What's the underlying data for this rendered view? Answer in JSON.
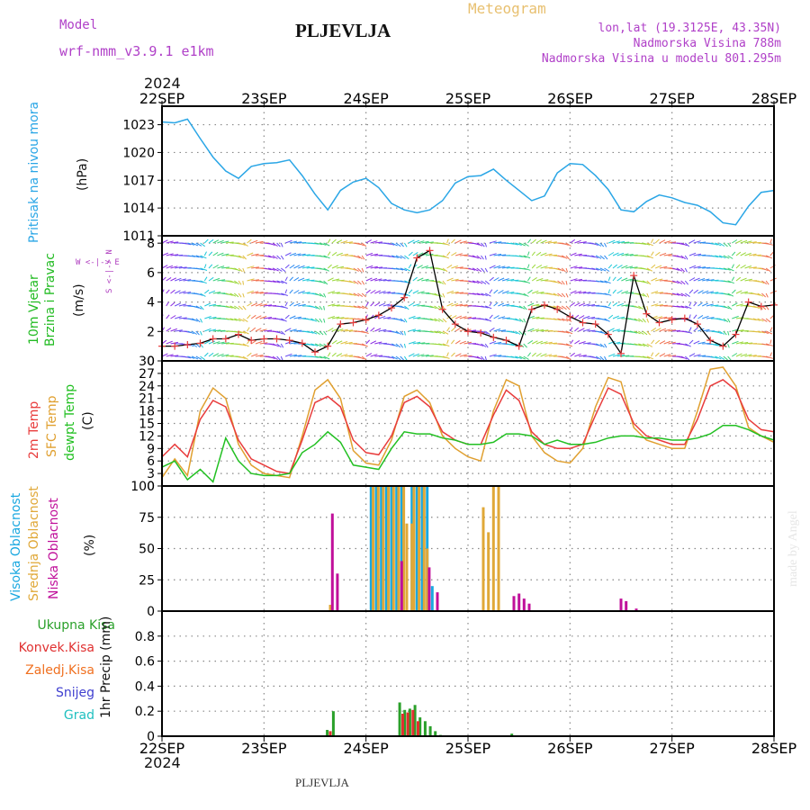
{
  "header": {
    "model_label": "Model",
    "model_name": "wrf-nmm_v3.9.1  e1km",
    "title": "PLJEVLJA",
    "subtitle": "Meteogram",
    "coords": "lon,lat (19.3125E, 43.35N)",
    "elevation": "Nadmorska Visina 788m",
    "model_elevation": "Nadmorska Visina u modelu 801.295m",
    "year": "2024",
    "footer_title": "PLJEVLJA",
    "credit": "made by Angel"
  },
  "colors": {
    "pressure": "#2aa6e6",
    "wind_label": "#22bb22",
    "temp2m": "#e83c3c",
    "sfc": "#e0a030",
    "dewpt": "#22c022",
    "high_cloud": "#1aa8e0",
    "mid_cloud": "#e0a838",
    "low_cloud": "#c0109a",
    "precip_total": "#2aa02a",
    "precip_conv": "#e03030",
    "precip_frz": "#f07020",
    "snow": "#4040d0",
    "graupel": "#20c0c0",
    "compass": "#b040c0",
    "header_purple": "#b040c8",
    "header_orange": "#e8c070"
  },
  "chart_data": [
    {
      "type": "line",
      "title": "Pritisak na nivou mora",
      "ylabel": "(hPa)",
      "x_ticks": [
        "22SEP",
        "23SEP",
        "24SEP",
        "25SEP",
        "26SEP",
        "27SEP",
        "28SEP"
      ],
      "ylim": [
        1011,
        1025
      ],
      "y_ticks": [
        1011,
        1014,
        1017,
        1020,
        1023
      ],
      "grid": true,
      "x": [
        0,
        0.125,
        0.25,
        0.375,
        0.5,
        0.625,
        0.75,
        0.875,
        1.0,
        1.125,
        1.25,
        1.375,
        1.5,
        1.625,
        1.75,
        1.875,
        2.0,
        2.125,
        2.25,
        2.375,
        2.5,
        2.625,
        2.75,
        2.875,
        3.0,
        3.125,
        3.25,
        3.375,
        3.5,
        3.625,
        3.75,
        3.875,
        4.0,
        4.125,
        4.25,
        4.375,
        4.5,
        4.625,
        4.75,
        4.875,
        5.0,
        5.125,
        5.25,
        5.375,
        5.5,
        5.625,
        5.75,
        5.875,
        6.0
      ],
      "series": [
        {
          "values": [
            1023.3,
            1023.2,
            1023.6,
            1021.5,
            1019.5,
            1018.0,
            1017.2,
            1018.5,
            1018.8,
            1018.9,
            1019.2,
            1017.5,
            1015.5,
            1013.8,
            1015.9,
            1016.8,
            1017.2,
            1016.2,
            1014.5,
            1013.8,
            1013.5,
            1013.8,
            1014.8,
            1016.7,
            1017.4,
            1017.5,
            1018.2,
            1017.0,
            1015.9,
            1014.8,
            1015.3,
            1017.8,
            1018.8,
            1018.7,
            1017.5,
            1016.0,
            1013.8,
            1013.6,
            1014.7,
            1015.4,
            1015.1,
            1014.6,
            1014.3,
            1013.6,
            1012.4,
            1012.2,
            1014.2,
            1015.7,
            1015.9
          ]
        }
      ]
    },
    {
      "type": "line",
      "title": "10m Vjetar Brzina i Pravac",
      "ylabel": "(m/s)",
      "compass": "W <-|-> E",
      "compass_vertical": "S <-|-> N",
      "ylim": [
        0,
        8.5
      ],
      "y_ticks": [
        0,
        2,
        4,
        6,
        8
      ],
      "x": [
        0,
        0.125,
        0.25,
        0.375,
        0.5,
        0.625,
        0.75,
        0.875,
        1.0,
        1.125,
        1.25,
        1.375,
        1.5,
        1.625,
        1.75,
        1.875,
        2.0,
        2.125,
        2.25,
        2.375,
        2.5,
        2.625,
        2.75,
        2.875,
        3.0,
        3.125,
        3.25,
        3.375,
        3.5,
        3.625,
        3.75,
        3.875,
        4.0,
        4.125,
        4.25,
        4.375,
        4.5,
        4.625,
        4.75,
        4.875,
        5.0,
        5.125,
        5.25,
        5.375,
        5.5,
        5.625,
        5.75,
        5.875,
        6.0
      ],
      "series": [
        {
          "name": "speed",
          "values": [
            1.0,
            1.0,
            1.1,
            1.2,
            1.5,
            1.5,
            1.8,
            1.4,
            1.5,
            1.5,
            1.4,
            1.2,
            0.6,
            1.0,
            2.5,
            2.6,
            2.8,
            3.1,
            3.6,
            4.3,
            7.0,
            7.5,
            3.5,
            2.5,
            2.0,
            1.9,
            1.6,
            1.4,
            1.0,
            3.5,
            3.8,
            3.5,
            3.0,
            2.6,
            2.5,
            1.8,
            0.5,
            5.8,
            3.2,
            2.6,
            2.8,
            2.9,
            2.5,
            1.4,
            1.0,
            1.8,
            4.0,
            3.7,
            3.8
          ]
        }
      ]
    },
    {
      "type": "line",
      "title": "2m Temp / SFC Temp / dewpt Temp",
      "ylabel": "(C)",
      "ylim": [
        0,
        30
      ],
      "y_ticks": [
        0,
        3,
        6,
        9,
        12,
        15,
        18,
        21,
        24,
        27,
        30
      ],
      "x": [
        0,
        0.125,
        0.25,
        0.375,
        0.5,
        0.625,
        0.75,
        0.875,
        1.0,
        1.125,
        1.25,
        1.375,
        1.5,
        1.625,
        1.75,
        1.875,
        2.0,
        2.125,
        2.25,
        2.375,
        2.5,
        2.625,
        2.75,
        2.875,
        3.0,
        3.125,
        3.25,
        3.375,
        3.5,
        3.625,
        3.75,
        3.875,
        4.0,
        4.125,
        4.25,
        4.375,
        4.5,
        4.625,
        4.75,
        4.875,
        5.0,
        5.125,
        5.25,
        5.375,
        5.5,
        5.625,
        5.75,
        5.875,
        6.0
      ],
      "series": [
        {
          "name": "2m Temp",
          "values": [
            7.0,
            10.0,
            7.0,
            16.0,
            20.5,
            19.0,
            11.0,
            6.5,
            5.0,
            3.5,
            3.0,
            11.0,
            20.0,
            21.5,
            19.0,
            11.0,
            8.0,
            7.5,
            12.0,
            20.0,
            21.5,
            19.0,
            13.0,
            11.0,
            10.0,
            10.0,
            17.0,
            23.0,
            20.5,
            13.0,
            10.0,
            9.0,
            9.0,
            10.0,
            17.0,
            23.5,
            22.0,
            15.0,
            12.0,
            11.0,
            10.0,
            10.0,
            16.0,
            24.0,
            25.5,
            23.0,
            16.0,
            13.5,
            13.0
          ]
        },
        {
          "name": "SFC Temp",
          "values": [
            2.0,
            6.5,
            2.5,
            18.0,
            23.5,
            21.0,
            10.0,
            5.0,
            3.0,
            2.5,
            2.0,
            12.0,
            23.0,
            25.5,
            21.0,
            8.5,
            5.5,
            5.0,
            11.0,
            21.5,
            23.0,
            20.0,
            12.0,
            9.0,
            7.0,
            6.0,
            18.0,
            25.5,
            24.0,
            12.0,
            8.0,
            6.0,
            5.5,
            9.0,
            19.0,
            26.0,
            25.0,
            14.0,
            11.0,
            10.0,
            9.0,
            9.0,
            18.0,
            28.0,
            28.5,
            24.0,
            14.0,
            12.0,
            10.5
          ]
        },
        {
          "name": "dewpt Temp",
          "values": [
            4.5,
            6.0,
            1.5,
            4.0,
            1.0,
            11.5,
            6.0,
            3.0,
            2.5,
            2.5,
            3.0,
            8.0,
            10.0,
            13.0,
            10.5,
            5.0,
            4.5,
            4.0,
            9.0,
            13.0,
            12.5,
            12.5,
            11.5,
            11.0,
            10.0,
            10.0,
            10.5,
            12.5,
            12.5,
            12.0,
            10.0,
            11.0,
            10.0,
            10.0,
            10.5,
            11.5,
            12.0,
            12.0,
            11.5,
            11.5,
            11.0,
            11.0,
            11.5,
            12.5,
            14.5,
            14.5,
            13.5,
            12.0,
            11.0
          ]
        }
      ]
    },
    {
      "type": "bar",
      "title": "Visoka Oblacnost / Srednja Oblacnost / Niska Oblacnost",
      "ylabel": "(%)",
      "ylim": [
        0,
        100
      ],
      "y_ticks": [
        0,
        25,
        50,
        75,
        100
      ],
      "series": [
        {
          "name": "Visoka Oblacnost",
          "bars": [
            [
              2.05,
              100
            ],
            [
              2.1,
              100
            ],
            [
              2.15,
              100
            ],
            [
              2.2,
              100
            ],
            [
              2.25,
              100
            ],
            [
              2.3,
              100
            ],
            [
              2.35,
              100
            ],
            [
              2.45,
              100
            ],
            [
              2.5,
              100
            ],
            [
              2.55,
              100
            ],
            [
              2.6,
              100
            ],
            [
              2.65,
              20
            ]
          ]
        },
        {
          "name": "Srednja Oblacnost",
          "bars": [
            [
              1.65,
              5
            ],
            [
              2.07,
              100
            ],
            [
              2.12,
              100
            ],
            [
              2.17,
              100
            ],
            [
              2.22,
              100
            ],
            [
              2.27,
              100
            ],
            [
              2.32,
              100
            ],
            [
              2.37,
              100
            ],
            [
              2.47,
              100
            ],
            [
              2.52,
              100
            ],
            [
              2.57,
              100
            ],
            [
              2.4,
              70
            ],
            [
              2.45,
              70
            ],
            [
              2.6,
              50
            ],
            [
              3.15,
              83
            ],
            [
              3.2,
              63
            ],
            [
              3.25,
              100
            ],
            [
              3.3,
              100
            ]
          ]
        },
        {
          "name": "Niska Oblacnost",
          "bars": [
            [
              1.67,
              78
            ],
            [
              1.72,
              30
            ],
            [
              2.35,
              40
            ],
            [
              2.62,
              35
            ],
            [
              2.7,
              15
            ],
            [
              3.45,
              12
            ],
            [
              3.5,
              14
            ],
            [
              3.55,
              10
            ],
            [
              3.6,
              6
            ],
            [
              4.5,
              10
            ],
            [
              4.55,
              8
            ],
            [
              4.65,
              2
            ]
          ]
        }
      ]
    },
    {
      "type": "bar",
      "title": "Ukupna Kisa / Konvek.Kisa / Zaledj.Kisa / Snijeg / Grad",
      "ylabel": "1hr Precip (mm)",
      "ylim": [
        0,
        1.0
      ],
      "y_ticks": [
        0,
        0.2,
        0.4,
        0.6,
        0.8
      ],
      "legend": [
        "Ukupna Kisa",
        "Konvek.Kisa",
        "Zaledj.Kisa",
        "Snijeg",
        "Grad"
      ],
      "series": [
        {
          "name": "Ukupna Kisa",
          "bars": [
            [
              1.62,
              0.05
            ],
            [
              1.68,
              0.2
            ],
            [
              2.33,
              0.27
            ],
            [
              2.38,
              0.21
            ],
            [
              2.43,
              0.22
            ],
            [
              2.48,
              0.25
            ],
            [
              2.53,
              0.15
            ],
            [
              2.58,
              0.12
            ],
            [
              2.63,
              0.08
            ],
            [
              2.68,
              0.04
            ],
            [
              2.73,
              0.01
            ],
            [
              3.43,
              0.02
            ]
          ]
        },
        {
          "name": "Konvek.Kisa",
          "bars": [
            [
              1.65,
              0.04
            ],
            [
              2.36,
              0.18
            ],
            [
              2.41,
              0.19
            ],
            [
              2.46,
              0.21
            ],
            [
              2.51,
              0.12
            ]
          ]
        },
        {
          "name": "Zaledj.Kisa",
          "bars": []
        },
        {
          "name": "Snijeg",
          "bars": []
        },
        {
          "name": "Grad",
          "bars": []
        }
      ]
    }
  ]
}
